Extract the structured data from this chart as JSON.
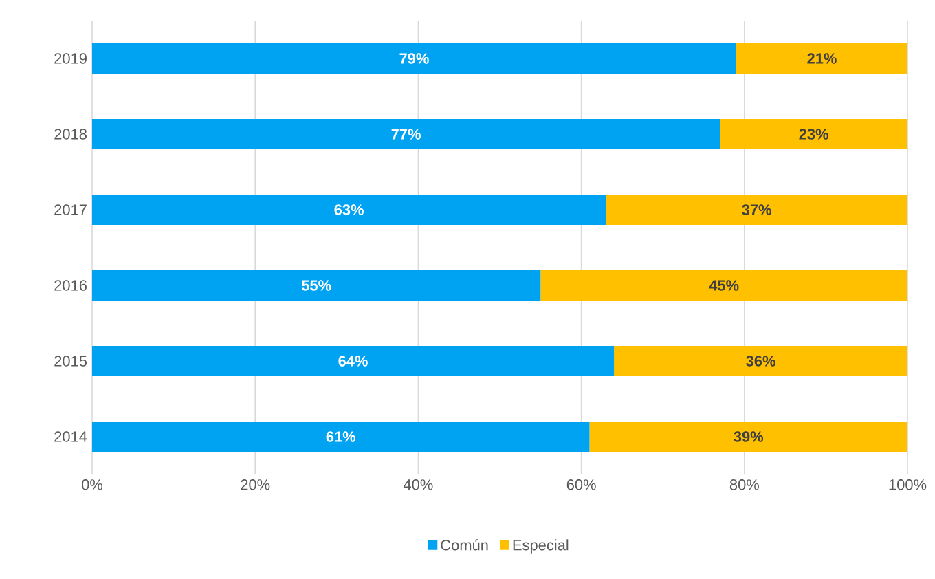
{
  "chart_data": {
    "type": "bar",
    "orientation": "horizontal",
    "stacked": true,
    "categories": [
      "2019",
      "2018",
      "2017",
      "2016",
      "2015",
      "2014"
    ],
    "series": [
      {
        "name": "Común",
        "color": "#00a2f2",
        "values": [
          79,
          77,
          63,
          55,
          64,
          61
        ],
        "value_labels": [
          "79%",
          "77%",
          "63%",
          "55%",
          "64%",
          "61%"
        ]
      },
      {
        "name": "Especial",
        "color": "#ffc000",
        "values": [
          21,
          23,
          37,
          45,
          36,
          39
        ],
        "value_labels": [
          "21%",
          "23%",
          "37%",
          "45%",
          "36%",
          "39%"
        ]
      }
    ],
    "xlim": [
      0,
      100
    ],
    "xticks": [
      {
        "value": 0,
        "label": "0%"
      },
      {
        "value": 20,
        "label": "20%"
      },
      {
        "value": 40,
        "label": "40%"
      },
      {
        "value": 60,
        "label": "60%"
      },
      {
        "value": 80,
        "label": "80%"
      },
      {
        "value": 100,
        "label": "100%"
      }
    ],
    "grid": "x",
    "legend": "bottom"
  }
}
